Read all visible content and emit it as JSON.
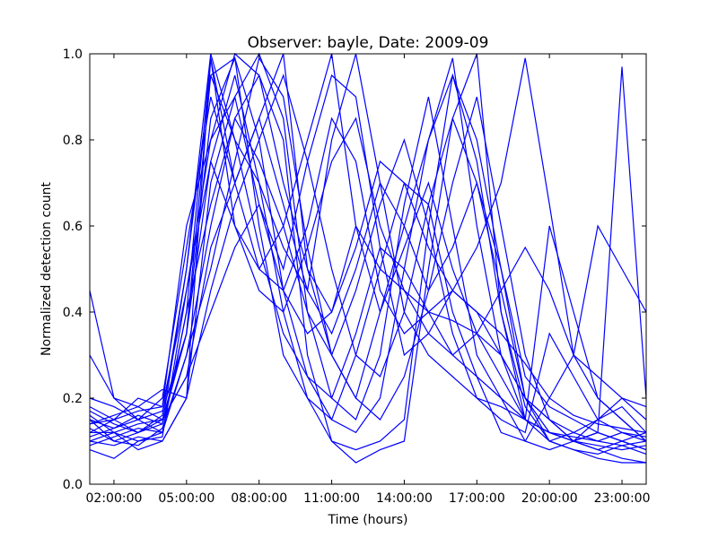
{
  "chart_data": {
    "type": "line",
    "title": "Observer: bayle, Date: 2009-09",
    "xlabel": "Time (hours)",
    "ylabel": "Normalized detection count",
    "xlim": [
      1,
      24
    ],
    "ylim": [
      0,
      1
    ],
    "x_ticks": [
      {
        "value": 2,
        "label": "02:00:00"
      },
      {
        "value": 5,
        "label": "05:00:00"
      },
      {
        "value": 8,
        "label": "08:00:00"
      },
      {
        "value": 11,
        "label": "11:00:00"
      },
      {
        "value": 14,
        "label": "14:00:00"
      },
      {
        "value": 17,
        "label": "17:00:00"
      },
      {
        "value": 20,
        "label": "20:00:00"
      },
      {
        "value": 23,
        "label": "23:00:00"
      }
    ],
    "y_ticks": [
      {
        "value": 0.0,
        "label": "0.0"
      },
      {
        "value": 0.2,
        "label": "0.2"
      },
      {
        "value": 0.4,
        "label": "0.4"
      },
      {
        "value": 0.6,
        "label": "0.6"
      },
      {
        "value": 0.8,
        "label": "0.8"
      },
      {
        "value": 1.0,
        "label": "1.0"
      }
    ],
    "grid": false,
    "line_color": "#0000ff",
    "x": [
      1,
      2,
      3,
      4,
      5,
      6,
      7,
      8,
      9,
      10,
      11,
      12,
      13,
      14,
      15,
      16,
      17,
      18,
      19,
      20,
      21,
      22,
      23,
      24
    ],
    "series": [
      {
        "values": [
          0.45,
          0.2,
          0.18,
          0.22,
          0.2,
          0.99,
          0.7,
          0.85,
          1.0,
          0.5,
          0.4,
          0.6,
          0.5,
          0.45,
          0.4,
          0.38,
          0.35,
          0.3,
          0.2,
          0.15,
          0.12,
          0.1,
          0.12,
          0.1
        ]
      },
      {
        "values": [
          0.15,
          0.1,
          0.12,
          0.15,
          0.35,
          0.95,
          0.99,
          0.6,
          0.3,
          0.2,
          0.1,
          0.08,
          0.1,
          0.15,
          0.6,
          0.95,
          0.8,
          0.5,
          0.2,
          0.1,
          0.08,
          0.06,
          0.05,
          0.05
        ]
      },
      {
        "values": [
          0.12,
          0.15,
          0.2,
          0.18,
          0.6,
          0.8,
          1.0,
          0.95,
          0.7,
          0.5,
          0.3,
          0.2,
          0.4,
          0.6,
          0.8,
          0.99,
          0.6,
          0.3,
          0.15,
          0.12,
          0.1,
          0.08,
          0.1,
          0.08
        ]
      },
      {
        "values": [
          0.3,
          0.2,
          0.15,
          0.12,
          0.4,
          0.99,
          0.6,
          0.5,
          0.6,
          0.8,
          1.0,
          0.6,
          0.4,
          0.55,
          0.7,
          0.5,
          0.35,
          0.25,
          0.15,
          0.1,
          0.12,
          0.15,
          0.18,
          0.12
        ]
      },
      {
        "values": [
          0.1,
          0.12,
          0.08,
          0.1,
          0.2,
          0.7,
          0.9,
          1.0,
          0.85,
          0.4,
          0.2,
          0.15,
          0.3,
          0.65,
          0.9,
          0.6,
          0.3,
          0.2,
          0.1,
          0.08,
          0.1,
          0.12,
          0.1,
          0.08
        ]
      },
      {
        "values": [
          0.18,
          0.15,
          0.12,
          0.14,
          0.5,
          0.95,
          0.8,
          0.7,
          0.55,
          0.45,
          0.8,
          1.0,
          0.7,
          0.4,
          0.3,
          0.25,
          0.2,
          0.18,
          0.15,
          0.6,
          0.4,
          0.2,
          0.15,
          0.1
        ]
      },
      {
        "values": [
          0.08,
          0.06,
          0.1,
          0.12,
          0.3,
          0.6,
          0.85,
          0.95,
          0.8,
          0.3,
          0.1,
          0.05,
          0.08,
          0.1,
          0.5,
          0.85,
          1.0,
          0.4,
          0.15,
          0.12,
          0.1,
          0.08,
          0.06,
          0.05
        ]
      },
      {
        "values": [
          0.14,
          0.16,
          0.18,
          0.15,
          0.25,
          0.4,
          0.55,
          0.65,
          0.5,
          0.75,
          0.95,
          0.9,
          0.55,
          0.3,
          0.35,
          0.45,
          0.55,
          0.7,
          0.99,
          0.65,
          0.3,
          0.2,
          0.15,
          0.1
        ]
      },
      {
        "values": [
          0.16,
          0.12,
          0.1,
          0.11,
          0.45,
          0.75,
          0.95,
          0.7,
          0.4,
          0.2,
          0.15,
          0.3,
          0.5,
          0.7,
          0.65,
          0.4,
          0.25,
          0.12,
          0.1,
          0.2,
          0.3,
          0.6,
          0.5,
          0.4
        ]
      },
      {
        "values": [
          0.11,
          0.13,
          0.15,
          0.17,
          0.35,
          0.85,
          0.99,
          0.8,
          0.45,
          0.25,
          0.15,
          0.12,
          0.2,
          0.5,
          0.8,
          0.95,
          0.75,
          0.4,
          0.18,
          0.1,
          0.08,
          0.07,
          0.09,
          0.07
        ]
      },
      {
        "values": [
          0.2,
          0.18,
          0.15,
          0.2,
          0.55,
          0.9,
          0.7,
          0.5,
          0.45,
          0.6,
          0.85,
          0.75,
          0.45,
          0.35,
          0.4,
          0.45,
          0.4,
          0.3,
          0.2,
          0.15,
          0.1,
          0.12,
          0.97,
          0.2
        ]
      },
      {
        "values": [
          0.13,
          0.1,
          0.09,
          0.13,
          0.3,
          0.5,
          0.75,
          0.99,
          0.9,
          0.55,
          0.3,
          0.2,
          0.15,
          0.25,
          0.45,
          0.7,
          0.9,
          0.6,
          0.3,
          0.15,
          0.1,
          0.09,
          0.08,
          0.09
        ]
      },
      {
        "values": [
          0.09,
          0.11,
          0.13,
          0.12,
          0.4,
          0.65,
          0.85,
          0.75,
          0.6,
          0.4,
          0.3,
          0.45,
          0.65,
          0.8,
          0.6,
          0.35,
          0.2,
          0.15,
          0.12,
          0.35,
          0.25,
          0.15,
          0.12,
          0.11
        ]
      },
      {
        "values": [
          0.17,
          0.14,
          0.12,
          0.16,
          0.5,
          1.0,
          0.8,
          0.55,
          0.35,
          0.25,
          0.2,
          0.35,
          0.55,
          0.5,
          0.4,
          0.3,
          0.25,
          0.2,
          0.15,
          0.12,
          0.1,
          0.15,
          0.2,
          0.15
        ]
      },
      {
        "values": [
          0.12,
          0.12,
          0.14,
          0.15,
          0.25,
          0.55,
          0.7,
          0.85,
          0.65,
          0.45,
          0.35,
          0.5,
          0.7,
          0.6,
          0.45,
          0.55,
          0.7,
          0.5,
          0.25,
          0.18,
          0.15,
          0.12,
          0.1,
          0.12
        ]
      },
      {
        "values": [
          0.1,
          0.09,
          0.11,
          0.1,
          0.2,
          0.45,
          0.65,
          0.8,
          0.95,
          0.75,
          0.5,
          0.3,
          0.25,
          0.4,
          0.65,
          0.85,
          0.7,
          0.45,
          0.2,
          0.12,
          0.11,
          0.1,
          0.09,
          0.1
        ]
      },
      {
        "values": [
          0.15,
          0.13,
          0.16,
          0.14,
          0.35,
          0.75,
          0.6,
          0.45,
          0.4,
          0.55,
          0.75,
          0.85,
          0.6,
          0.45,
          0.35,
          0.3,
          0.35,
          0.45,
          0.55,
          0.45,
          0.3,
          0.25,
          0.2,
          0.18
        ]
      },
      {
        "values": [
          0.14,
          0.15,
          0.17,
          0.18,
          0.45,
          0.8,
          0.9,
          0.65,
          0.45,
          0.35,
          0.4,
          0.55,
          0.75,
          0.7,
          0.55,
          0.45,
          0.4,
          0.35,
          0.28,
          0.2,
          0.16,
          0.14,
          0.13,
          0.12
        ]
      }
    ]
  }
}
